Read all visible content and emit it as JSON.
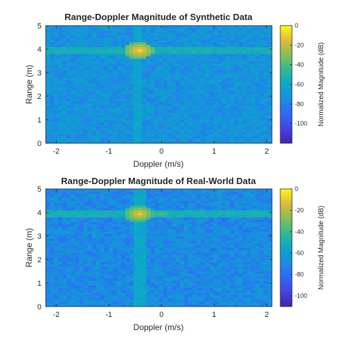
{
  "chart_data": [
    {
      "type": "heatmap",
      "title": "Range-Doppler Magnitude of Synthetic Data",
      "xlabel": "Doppler (m/s)",
      "ylabel": "Range (m)",
      "xlim": [
        -2.2,
        2.1
      ],
      "ylim": [
        0,
        5
      ],
      "xticks": [
        -2,
        -1,
        0,
        1,
        2
      ],
      "yticks": [
        0,
        1,
        2,
        3,
        4,
        5
      ],
      "colorbar": {
        "label": "Normalized Magnitude (dB)",
        "range": [
          -120,
          0
        ],
        "ticks": [
          0,
          -20,
          -40,
          -60,
          -80,
          -100
        ],
        "colormap": "parula"
      },
      "floor_db": -72,
      "target": {
        "doppler": -0.42,
        "range": 3.95,
        "peak_db": -5
      },
      "features": [
        {
          "kind": "range-line",
          "range": 3.95,
          "level_db": -55
        },
        {
          "kind": "doppler-line",
          "doppler": -0.42,
          "level_db": -62
        }
      ]
    },
    {
      "type": "heatmap",
      "title": "Range-Doppler Magnitude of Real-World Data",
      "xlabel": "Doppler (m/s)",
      "ylabel": "Range (m)",
      "xlim": [
        -2.2,
        2.1
      ],
      "ylim": [
        0,
        5
      ],
      "xticks": [
        -2,
        -1,
        0,
        1,
        2
      ],
      "yticks": [
        0,
        1,
        2,
        3,
        4,
        5
      ],
      "colorbar": {
        "label": "Normalized Magnitude (dB)",
        "range": [
          -110,
          0
        ],
        "ticks": [
          0,
          -20,
          -40,
          -60,
          -80,
          -100
        ],
        "colormap": "parula"
      },
      "floor_db": -70,
      "target": {
        "doppler": -0.42,
        "range": 3.95,
        "peak_db": -8
      },
      "features": [
        {
          "kind": "range-line",
          "range": 3.95,
          "level_db": -50
        },
        {
          "kind": "doppler-band",
          "doppler": -0.42,
          "level_db": -56
        }
      ]
    }
  ]
}
